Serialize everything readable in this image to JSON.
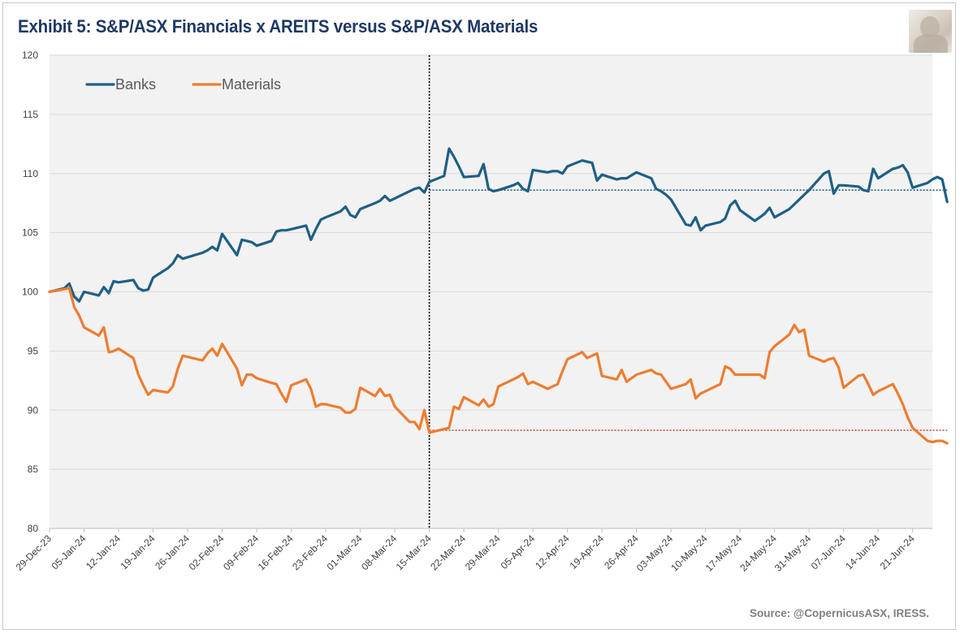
{
  "title": "Exhibit 5: S&P/ASX Financials x AREITS versus S&P/ASX Materials",
  "source": "Source: @CopernicusASX, IRESS.",
  "logo_icon": "roman-bust-icon",
  "colors": {
    "banks": "#1f5f85",
    "materials": "#ed7d31",
    "plot_bg": "#f2f2f2",
    "grid": "#d9d9d9",
    "title": "#1f3864"
  },
  "chart_data": {
    "type": "line",
    "title": "Exhibit 5: S&P/ASX Financials x AREITS versus S&P/ASX Materials",
    "xlabel": "",
    "ylabel": "",
    "ylim": [
      80,
      120
    ],
    "yticks": [
      80,
      85,
      90,
      95,
      100,
      105,
      110,
      115,
      120
    ],
    "xlim": [
      "2023-12-29",
      "2024-06-25"
    ],
    "xtick_labels": [
      "29-Dec-23",
      "05-Jan-24",
      "12-Jan-24",
      "19-Jan-24",
      "26-Jan-24",
      "02-Feb-24",
      "09-Feb-24",
      "16-Feb-24",
      "23-Feb-24",
      "01-Mar-24",
      "08-Mar-24",
      "15-Mar-24",
      "22-Mar-24",
      "29-Mar-24",
      "05-Apr-24",
      "12-Apr-24",
      "19-Apr-24",
      "26-Apr-24",
      "03-May-24",
      "10-May-24",
      "17-May-24",
      "24-May-24",
      "31-May-24",
      "07-Jun-24",
      "14-Jun-24",
      "21-Jun-24"
    ],
    "grid": "horizontal",
    "legend_position": "top-left",
    "annotations": {
      "vertical_line_date": "2024-03-15",
      "banks_reference_level": 108.6,
      "materials_reference_level": 88.3
    },
    "series": [
      {
        "name": "Banks",
        "points": [
          [
            "2023-12-29",
            100.0
          ],
          [
            "2024-01-01",
            100.3
          ],
          [
            "2024-01-02",
            100.7
          ],
          [
            "2024-01-03",
            99.6
          ],
          [
            "2024-01-04",
            99.2
          ],
          [
            "2024-01-05",
            100.0
          ],
          [
            "2024-01-08",
            99.7
          ],
          [
            "2024-01-09",
            100.4
          ],
          [
            "2024-01-10",
            99.9
          ],
          [
            "2024-01-11",
            100.9
          ],
          [
            "2024-01-12",
            100.8
          ],
          [
            "2024-01-15",
            101.0
          ],
          [
            "2024-01-16",
            100.3
          ],
          [
            "2024-01-17",
            100.1
          ],
          [
            "2024-01-18",
            100.2
          ],
          [
            "2024-01-19",
            101.2
          ],
          [
            "2024-01-22",
            102.0
          ],
          [
            "2024-01-23",
            102.4
          ],
          [
            "2024-01-24",
            103.1
          ],
          [
            "2024-01-25",
            102.8
          ],
          [
            "2024-01-29",
            103.3
          ],
          [
            "2024-01-30",
            103.5
          ],
          [
            "2024-01-31",
            103.8
          ],
          [
            "2024-02-01",
            103.5
          ],
          [
            "2024-02-02",
            104.9
          ],
          [
            "2024-02-05",
            103.1
          ],
          [
            "2024-02-06",
            104.4
          ],
          [
            "2024-02-07",
            104.3
          ],
          [
            "2024-02-08",
            104.2
          ],
          [
            "2024-02-09",
            103.9
          ],
          [
            "2024-02-12",
            104.3
          ],
          [
            "2024-02-13",
            105.1
          ],
          [
            "2024-02-14",
            105.2
          ],
          [
            "2024-02-15",
            105.2
          ],
          [
            "2024-02-16",
            105.3
          ],
          [
            "2024-02-19",
            105.6
          ],
          [
            "2024-02-20",
            104.4
          ],
          [
            "2024-02-21",
            105.3
          ],
          [
            "2024-02-22",
            106.1
          ],
          [
            "2024-02-23",
            106.3
          ],
          [
            "2024-02-26",
            106.8
          ],
          [
            "2024-02-27",
            107.2
          ],
          [
            "2024-02-28",
            106.5
          ],
          [
            "2024-02-29",
            106.3
          ],
          [
            "2024-03-01",
            107.0
          ],
          [
            "2024-03-04",
            107.5
          ],
          [
            "2024-03-05",
            107.7
          ],
          [
            "2024-03-06",
            108.1
          ],
          [
            "2024-03-07",
            107.7
          ],
          [
            "2024-03-08",
            107.9
          ],
          [
            "2024-03-11",
            108.5
          ],
          [
            "2024-03-12",
            108.7
          ],
          [
            "2024-03-13",
            108.8
          ],
          [
            "2024-03-14",
            108.4
          ],
          [
            "2024-03-15",
            109.3
          ],
          [
            "2024-03-18",
            109.8
          ],
          [
            "2024-03-19",
            112.1
          ],
          [
            "2024-03-20",
            111.4
          ],
          [
            "2024-03-21",
            110.6
          ],
          [
            "2024-03-22",
            109.7
          ],
          [
            "2024-03-25",
            109.8
          ],
          [
            "2024-03-26",
            110.8
          ],
          [
            "2024-03-27",
            108.7
          ],
          [
            "2024-03-28",
            108.5
          ],
          [
            "2024-03-29",
            108.6
          ],
          [
            "2024-04-01",
            109.0
          ],
          [
            "2024-04-02",
            109.2
          ],
          [
            "2024-04-03",
            108.7
          ],
          [
            "2024-04-04",
            108.5
          ],
          [
            "2024-04-05",
            110.3
          ],
          [
            "2024-04-08",
            110.1
          ],
          [
            "2024-04-09",
            110.2
          ],
          [
            "2024-04-10",
            110.2
          ],
          [
            "2024-04-11",
            110.0
          ],
          [
            "2024-04-12",
            110.6
          ],
          [
            "2024-04-15",
            111.1
          ],
          [
            "2024-04-16",
            111.0
          ],
          [
            "2024-04-17",
            110.9
          ],
          [
            "2024-04-18",
            109.4
          ],
          [
            "2024-04-19",
            109.9
          ],
          [
            "2024-04-22",
            109.5
          ],
          [
            "2024-04-23",
            109.6
          ],
          [
            "2024-04-24",
            109.6
          ],
          [
            "2024-04-26",
            110.1
          ],
          [
            "2024-04-29",
            109.6
          ],
          [
            "2024-04-30",
            108.7
          ],
          [
            "2024-05-01",
            108.5
          ],
          [
            "2024-05-02",
            108.2
          ],
          [
            "2024-05-03",
            107.8
          ],
          [
            "2024-05-06",
            105.7
          ],
          [
            "2024-05-07",
            105.6
          ],
          [
            "2024-05-08",
            106.3
          ],
          [
            "2024-05-09",
            105.2
          ],
          [
            "2024-05-10",
            105.6
          ],
          [
            "2024-05-13",
            105.9
          ],
          [
            "2024-05-14",
            106.2
          ],
          [
            "2024-05-15",
            107.3
          ],
          [
            "2024-05-16",
            107.7
          ],
          [
            "2024-05-17",
            106.9
          ],
          [
            "2024-05-20",
            106.0
          ],
          [
            "2024-05-21",
            106.3
          ],
          [
            "2024-05-22",
            106.6
          ],
          [
            "2024-05-23",
            107.1
          ],
          [
            "2024-05-24",
            106.3
          ],
          [
            "2024-05-27",
            107.0
          ],
          [
            "2024-05-28",
            107.4
          ],
          [
            "2024-05-29",
            107.8
          ],
          [
            "2024-05-30",
            108.2
          ],
          [
            "2024-05-31",
            108.6
          ],
          [
            "2024-06-03",
            110.0
          ],
          [
            "2024-06-04",
            110.2
          ],
          [
            "2024-06-05",
            108.3
          ],
          [
            "2024-06-06",
            109.0
          ],
          [
            "2024-06-07",
            109.0
          ],
          [
            "2024-06-10",
            108.9
          ],
          [
            "2024-06-11",
            108.6
          ],
          [
            "2024-06-12",
            108.5
          ],
          [
            "2024-06-13",
            110.4
          ],
          [
            "2024-06-14",
            109.6
          ],
          [
            "2024-06-17",
            110.4
          ],
          [
            "2024-06-18",
            110.5
          ],
          [
            "2024-06-19",
            110.7
          ],
          [
            "2024-06-20",
            110.1
          ],
          [
            "2024-06-21",
            108.8
          ],
          [
            "2024-06-24",
            109.2
          ],
          [
            "2024-06-25",
            109.5
          ],
          [
            "2024-06-26",
            109.7
          ],
          [
            "2024-06-27",
            109.5
          ],
          [
            "2024-06-28",
            107.6
          ]
        ]
      },
      {
        "name": "Materials",
        "points": [
          [
            "2023-12-29",
            100.0
          ],
          [
            "2024-01-02",
            100.3
          ],
          [
            "2024-01-03",
            98.7
          ],
          [
            "2024-01-04",
            98.0
          ],
          [
            "2024-01-05",
            97.0
          ],
          [
            "2024-01-08",
            96.3
          ],
          [
            "2024-01-09",
            97.0
          ],
          [
            "2024-01-10",
            94.9
          ],
          [
            "2024-01-11",
            95.0
          ],
          [
            "2024-01-12",
            95.2
          ],
          [
            "2024-01-15",
            94.4
          ],
          [
            "2024-01-16",
            93.0
          ],
          [
            "2024-01-17",
            92.1
          ],
          [
            "2024-01-18",
            91.3
          ],
          [
            "2024-01-19",
            91.7
          ],
          [
            "2024-01-22",
            91.5
          ],
          [
            "2024-01-23",
            92.0
          ],
          [
            "2024-01-24",
            93.5
          ],
          [
            "2024-01-25",
            94.6
          ],
          [
            "2024-01-29",
            94.2
          ],
          [
            "2024-01-30",
            94.8
          ],
          [
            "2024-01-31",
            95.2
          ],
          [
            "2024-02-01",
            94.6
          ],
          [
            "2024-02-02",
            95.6
          ],
          [
            "2024-02-05",
            93.5
          ],
          [
            "2024-02-06",
            92.1
          ],
          [
            "2024-02-07",
            93.0
          ],
          [
            "2024-02-08",
            93.0
          ],
          [
            "2024-02-09",
            92.7
          ],
          [
            "2024-02-12",
            92.3
          ],
          [
            "2024-02-13",
            92.2
          ],
          [
            "2024-02-14",
            91.4
          ],
          [
            "2024-02-15",
            90.7
          ],
          [
            "2024-02-16",
            92.1
          ],
          [
            "2024-02-19",
            92.6
          ],
          [
            "2024-02-20",
            91.8
          ],
          [
            "2024-02-21",
            90.3
          ],
          [
            "2024-02-22",
            90.5
          ],
          [
            "2024-02-23",
            90.5
          ],
          [
            "2024-02-26",
            90.2
          ],
          [
            "2024-02-27",
            89.8
          ],
          [
            "2024-02-28",
            89.8
          ],
          [
            "2024-02-29",
            90.1
          ],
          [
            "2024-03-01",
            91.9
          ],
          [
            "2024-03-04",
            91.2
          ],
          [
            "2024-03-05",
            91.8
          ],
          [
            "2024-03-06",
            91.2
          ],
          [
            "2024-03-07",
            91.3
          ],
          [
            "2024-03-08",
            90.3
          ],
          [
            "2024-03-11",
            89.0
          ],
          [
            "2024-03-12",
            89.0
          ],
          [
            "2024-03-13",
            88.4
          ],
          [
            "2024-03-14",
            90.0
          ],
          [
            "2024-03-15",
            88.1
          ],
          [
            "2024-03-18",
            88.4
          ],
          [
            "2024-03-19",
            88.5
          ],
          [
            "2024-03-20",
            90.3
          ],
          [
            "2024-03-21",
            90.1
          ],
          [
            "2024-03-22",
            91.1
          ],
          [
            "2024-03-25",
            90.4
          ],
          [
            "2024-03-26",
            90.9
          ],
          [
            "2024-03-27",
            90.3
          ],
          [
            "2024-03-28",
            90.5
          ],
          [
            "2024-03-29",
            92.0
          ],
          [
            "2024-04-01",
            92.6
          ],
          [
            "2024-04-02",
            92.8
          ],
          [
            "2024-04-03",
            93.1
          ],
          [
            "2024-04-04",
            92.2
          ],
          [
            "2024-04-05",
            92.4
          ],
          [
            "2024-04-08",
            91.8
          ],
          [
            "2024-04-09",
            92.0
          ],
          [
            "2024-04-10",
            92.2
          ],
          [
            "2024-04-11",
            93.3
          ],
          [
            "2024-04-12",
            94.3
          ],
          [
            "2024-04-15",
            94.9
          ],
          [
            "2024-04-16",
            94.4
          ],
          [
            "2024-04-17",
            94.6
          ],
          [
            "2024-04-18",
            94.8
          ],
          [
            "2024-04-19",
            92.9
          ],
          [
            "2024-04-22",
            92.6
          ],
          [
            "2024-04-23",
            93.4
          ],
          [
            "2024-04-24",
            92.4
          ],
          [
            "2024-04-26",
            93.0
          ],
          [
            "2024-04-29",
            93.4
          ],
          [
            "2024-04-30",
            93.1
          ],
          [
            "2024-05-01",
            93.0
          ],
          [
            "2024-05-02",
            92.4
          ],
          [
            "2024-05-03",
            91.8
          ],
          [
            "2024-05-06",
            92.2
          ],
          [
            "2024-05-07",
            92.6
          ],
          [
            "2024-05-08",
            91.0
          ],
          [
            "2024-05-09",
            91.4
          ],
          [
            "2024-05-10",
            91.6
          ],
          [
            "2024-05-13",
            92.2
          ],
          [
            "2024-05-14",
            93.7
          ],
          [
            "2024-05-15",
            93.5
          ],
          [
            "2024-05-16",
            93.0
          ],
          [
            "2024-05-17",
            93.0
          ],
          [
            "2024-05-20",
            93.0
          ],
          [
            "2024-05-21",
            93.0
          ],
          [
            "2024-05-22",
            92.7
          ],
          [
            "2024-05-23",
            94.9
          ],
          [
            "2024-05-24",
            95.4
          ],
          [
            "2024-05-27",
            96.4
          ],
          [
            "2024-05-28",
            97.2
          ],
          [
            "2024-05-29",
            96.6
          ],
          [
            "2024-05-30",
            96.8
          ],
          [
            "2024-05-31",
            94.6
          ],
          [
            "2024-06-03",
            94.1
          ],
          [
            "2024-06-04",
            94.3
          ],
          [
            "2024-06-05",
            94.4
          ],
          [
            "2024-06-06",
            93.6
          ],
          [
            "2024-06-07",
            91.9
          ],
          [
            "2024-06-10",
            92.9
          ],
          [
            "2024-06-11",
            93.0
          ],
          [
            "2024-06-12",
            92.2
          ],
          [
            "2024-06-13",
            91.3
          ],
          [
            "2024-06-14",
            91.6
          ],
          [
            "2024-06-17",
            92.2
          ],
          [
            "2024-06-18",
            91.4
          ],
          [
            "2024-06-19",
            90.5
          ],
          [
            "2024-06-20",
            89.4
          ],
          [
            "2024-06-21",
            88.5
          ],
          [
            "2024-06-24",
            87.4
          ],
          [
            "2024-06-25",
            87.3
          ],
          [
            "2024-06-26",
            87.4
          ],
          [
            "2024-06-27",
            87.4
          ],
          [
            "2024-06-28",
            87.2
          ]
        ]
      }
    ]
  }
}
